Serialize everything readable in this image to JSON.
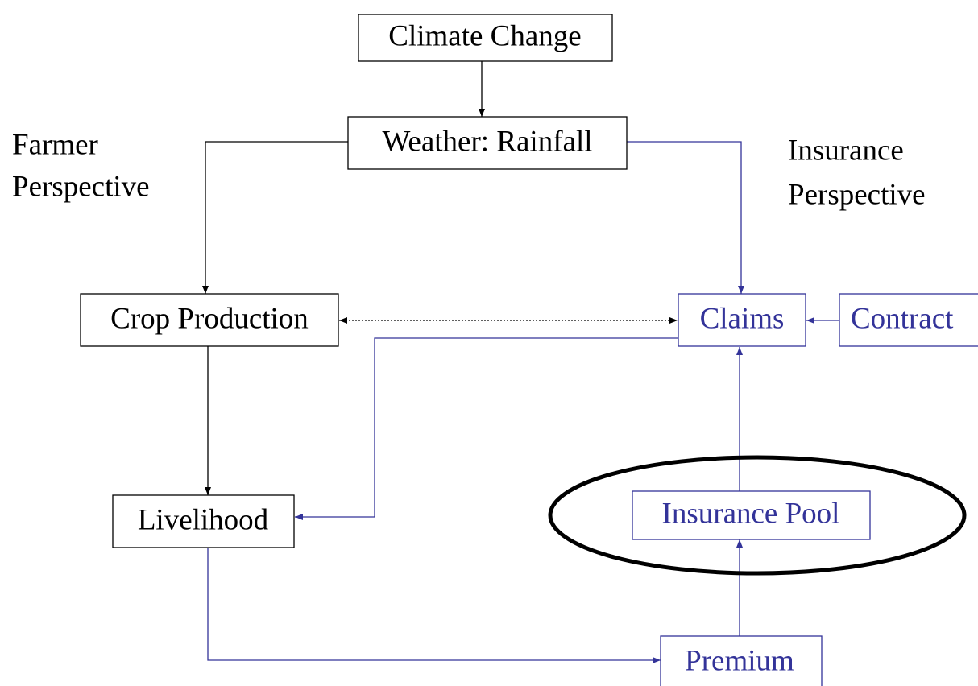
{
  "nodes": [
    {
      "label": "Climate Change"
    },
    {
      "label": "Weather: Rainfall"
    },
    {
      "label": "Crop Production"
    },
    {
      "label": "Claims"
    },
    {
      "label": "Contract"
    },
    {
      "label": "Livelihood"
    },
    {
      "label": "Insurance Pool"
    },
    {
      "label": "Premium"
    }
  ],
  "annotations": [
    {
      "lines": [
        "Farmer",
        "Perspective"
      ]
    },
    {
      "lines": [
        "Insurance",
        "Perspective"
      ]
    }
  ]
}
